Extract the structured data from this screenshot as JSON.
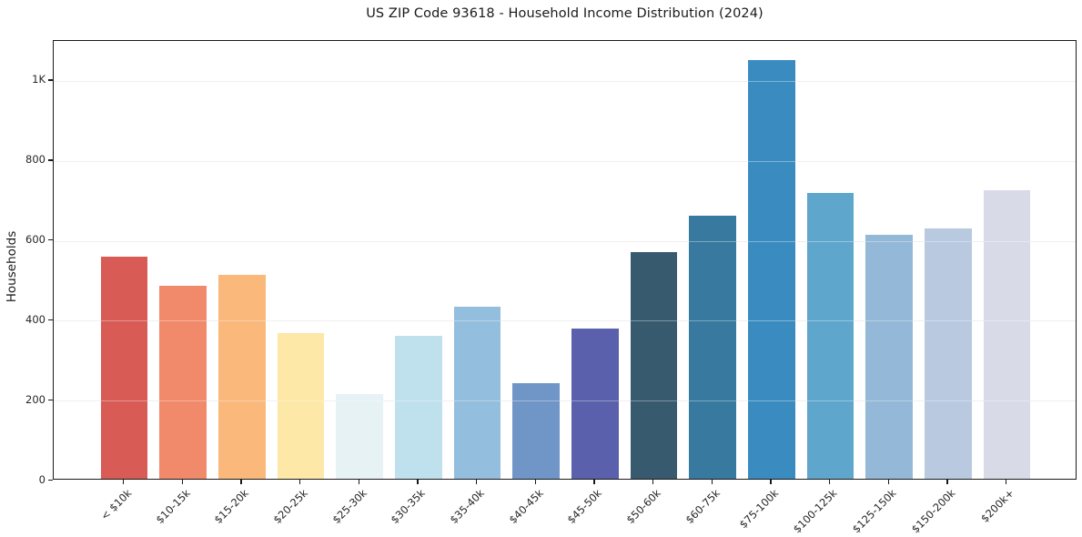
{
  "chart_data": {
    "type": "bar",
    "title": "US ZIP Code 93618 - Household Income Distribution (2024)",
    "xlabel": "",
    "ylabel": "Households",
    "categories": [
      "< $10k",
      "$10-15k",
      "$15-20k",
      "$20-25k",
      "$25-30k",
      "$30-35k",
      "$35-40k",
      "$40-45k",
      "$45-50k",
      "$50-60k",
      "$60-75k",
      "$75-100k",
      "$100-125k",
      "$125-150k",
      "$150-200k",
      "$200k+"
    ],
    "values": [
      556,
      483,
      510,
      365,
      212,
      357,
      431,
      240,
      376,
      568,
      659,
      1048,
      716,
      610,
      627,
      722
    ],
    "bar_colors": [
      "#d85c55",
      "#f08a6a",
      "#fab87b",
      "#fde8a8",
      "#e6f2f3",
      "#bfe0ed",
      "#93bedd",
      "#6f96c7",
      "#5a60ab",
      "#385a6e",
      "#37799f",
      "#3a8cc0",
      "#5ea6cc",
      "#93b8d8",
      "#b8c9e0",
      "#d8dae8"
    ],
    "ylim": [
      0,
      1100
    ],
    "yticks": [
      0,
      200,
      400,
      600,
      800,
      1000
    ],
    "ytick_labels": [
      "0",
      "200",
      "400",
      "600",
      "800",
      "1K"
    ],
    "grid": "horizontal",
    "legend": "none",
    "bar_width_fraction": 0.8,
    "spine_color": "#1a1a1a",
    "grid_color": "#e9e9e9",
    "text_color": "#262626",
    "background": "#ffffff"
  }
}
